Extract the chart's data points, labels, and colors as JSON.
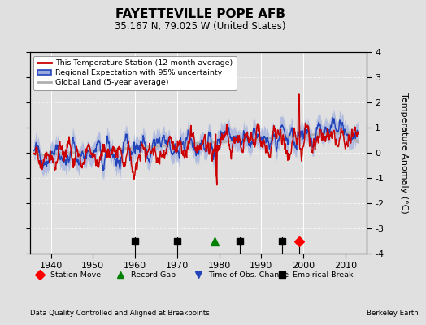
{
  "title": "FAYETTEVILLE POPE AFB",
  "subtitle": "35.167 N, 79.025 W (United States)",
  "ylabel": "Temperature Anomaly (°C)",
  "footer_left": "Data Quality Controlled and Aligned at Breakpoints",
  "footer_right": "Berkeley Earth",
  "ylim": [
    -4,
    4
  ],
  "xlim": [
    1935,
    2015
  ],
  "yticks": [
    -4,
    -3,
    -2,
    -1,
    0,
    1,
    2,
    3,
    4
  ],
  "xticks": [
    1940,
    1950,
    1960,
    1970,
    1980,
    1990,
    2000,
    2010
  ],
  "bg_color": "#e0e0e0",
  "plot_bg_color": "#e0e0e0",
  "red_color": "#cc0000",
  "blue_color": "#2244bb",
  "blue_fill_color": "#99aadd",
  "gray_color": "#b0b0b0",
  "empirical_breaks": [
    1960,
    1970,
    1985,
    1995
  ],
  "station_move": [
    1999
  ],
  "record_gap": [
    1979
  ],
  "time_obs_change": [],
  "seed": 17,
  "start_year": 1936,
  "end_year": 2013
}
